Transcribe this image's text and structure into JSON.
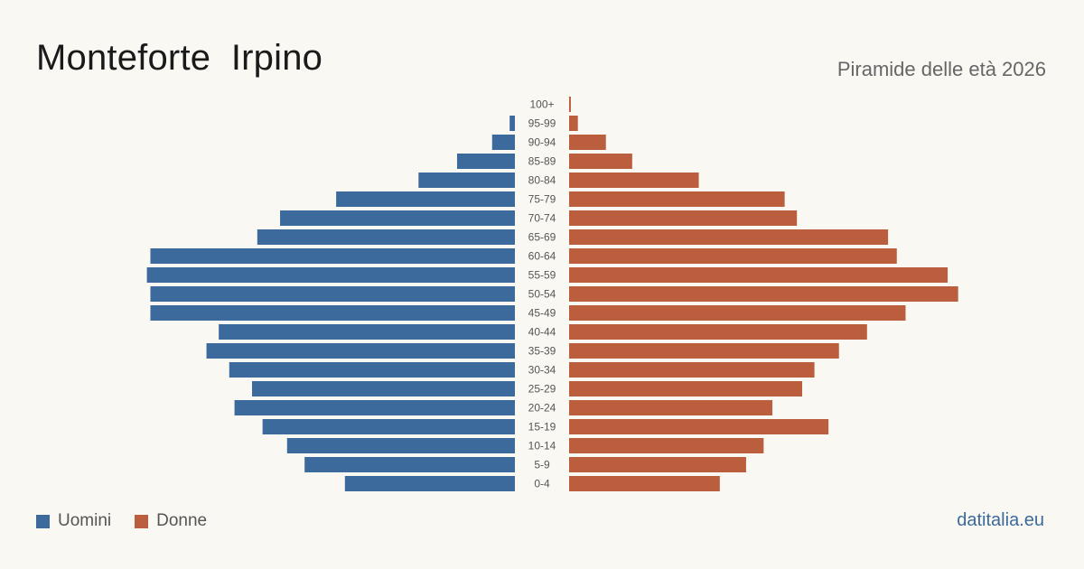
{
  "title": "Monteforte  Irpino",
  "subtitle": "Piramide delle età 2026",
  "source": "datitalia.eu",
  "colors": {
    "men": "#3c6a9c",
    "women": "#bb5e3e"
  },
  "chart_data": {
    "type": "bar",
    "orientation": "horizontal-pyramid",
    "title": "Monteforte  Irpino",
    "subtitle": "Piramide delle età 2026",
    "categories": [
      "100+",
      "95-99",
      "90-94",
      "85-89",
      "80-84",
      "75-79",
      "70-74",
      "65-69",
      "60-64",
      "55-59",
      "50-54",
      "45-49",
      "40-44",
      "35-39",
      "30-34",
      "25-29",
      "20-24",
      "15-19",
      "10-14",
      "5-9",
      "0-4"
    ],
    "series": [
      {
        "name": "Uomini",
        "values": [
          0,
          3,
          13,
          33,
          55,
          102,
          134,
          147,
          208,
          210,
          208,
          208,
          169,
          176,
          163,
          150,
          160,
          144,
          130,
          120,
          97
        ]
      },
      {
        "name": "Donne",
        "values": [
          1,
          5,
          21,
          36,
          74,
          123,
          130,
          182,
          187,
          216,
          222,
          192,
          170,
          154,
          140,
          133,
          116,
          148,
          111,
          101,
          86
        ]
      }
    ],
    "legend": "bottom-left",
    "grid": false
  }
}
